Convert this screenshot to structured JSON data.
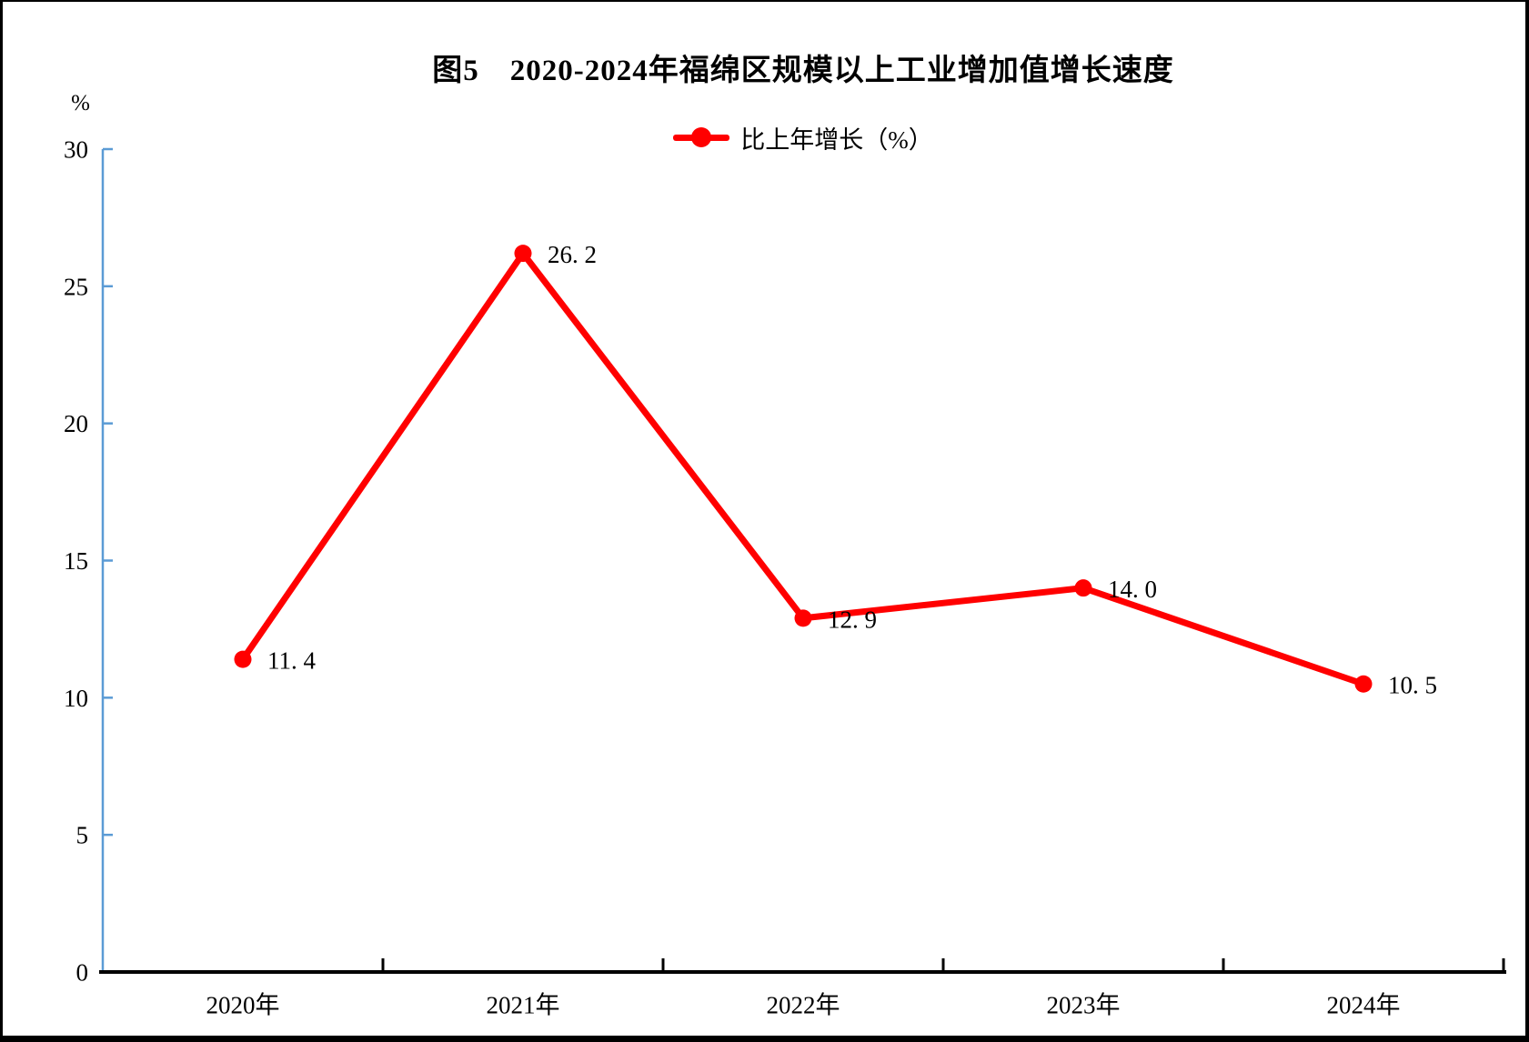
{
  "page": {
    "title": "图5　2020-2024年福绵区规模以上工业增加值增长速度"
  },
  "legend": {
    "label": "比上年增长（%）"
  },
  "colors": {
    "series": "#FF0000",
    "y_axis": "#5B9BD5",
    "x_axis": "#000000",
    "text": "#000000",
    "frame": "#000000"
  },
  "chart_data": {
    "type": "line",
    "title": "图5　2020-2024年福绵区规模以上工业增加值增长速度",
    "categories": [
      "2020年",
      "2021年",
      "2022年",
      "2023年",
      "2024年"
    ],
    "series": [
      {
        "name": "比上年增长（%）",
        "values": [
          11.4,
          26.2,
          12.9,
          14.0,
          10.5
        ],
        "point_labels": [
          "11. 4",
          "26. 2",
          "12. 9",
          "14. 0",
          "10. 5"
        ],
        "color": "#FF0000",
        "marker": "circle"
      }
    ],
    "xlabel": "",
    "ylabel": "%",
    "ylim": [
      0,
      30
    ],
    "yticks": [
      0,
      5,
      10,
      15,
      20,
      25,
      30
    ],
    "grid": false,
    "legend_position": "top-center"
  }
}
